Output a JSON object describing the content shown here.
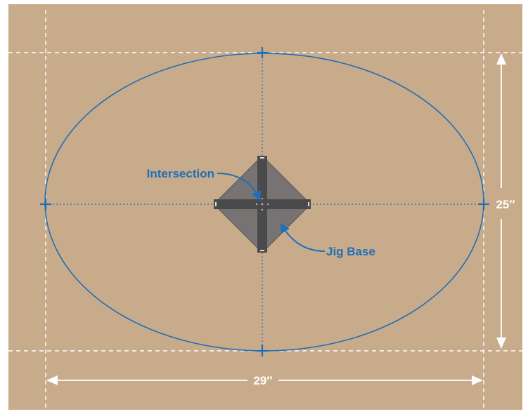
{
  "colors": {
    "board": "#c8ab8b",
    "background": "#ffffff",
    "ellipse": "#1f6fb8",
    "guide_line": "#ffffff",
    "jig": "#6d6d6f",
    "jig_bar": "#4a4a4c",
    "dimension": "#ffffff"
  },
  "labels": {
    "intersection": "Intersection",
    "jig_base": "Jig Base",
    "height_dimension": "25″",
    "width_dimension": "29″"
  },
  "icons": {
    "marker": "plus-marker-icon",
    "arrow": "arrow-icon"
  }
}
